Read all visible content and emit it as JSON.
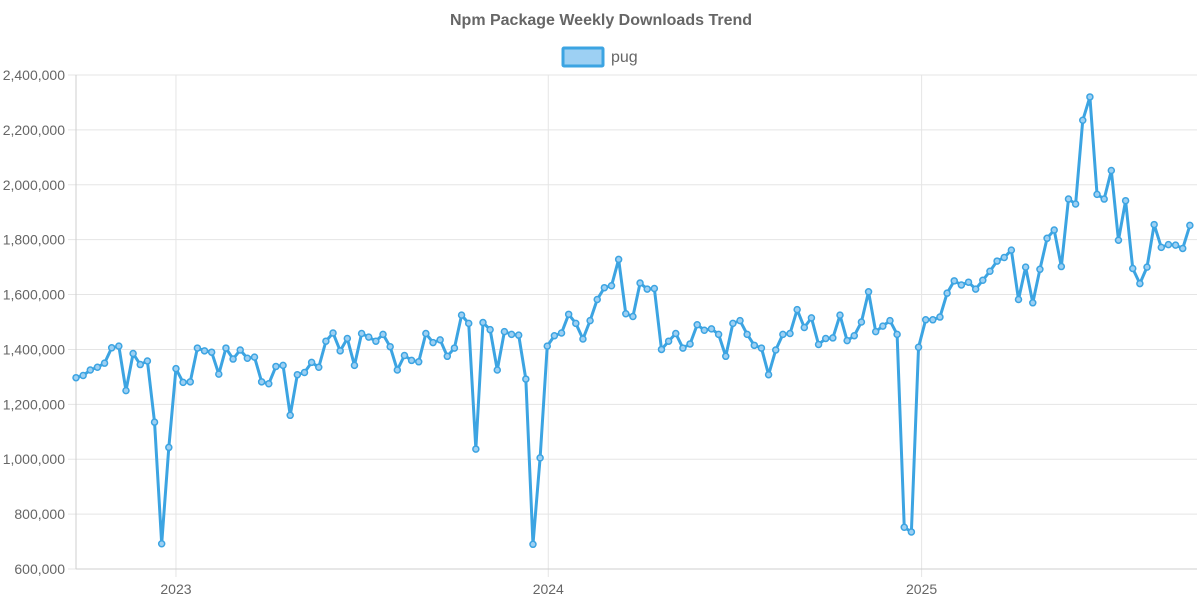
{
  "chart_data": {
    "type": "line",
    "title": "Npm Package Weekly Downloads Trend",
    "xlabel": "",
    "ylabel": "",
    "legend_position": "top",
    "grid": true,
    "colors": {
      "line": "#3ca4e2",
      "fill": "#9dd0f3",
      "text": "#666666",
      "grid": "#e5e5e5"
    },
    "x_range": [
      "2022-09-25",
      "2025-09-28"
    ],
    "ylim": [
      600000,
      2400000
    ],
    "y_ticks": [
      600000,
      800000,
      1000000,
      1200000,
      1400000,
      1600000,
      1800000,
      2000000,
      2200000,
      2400000
    ],
    "y_tick_labels": [
      "600,000",
      "800,000",
      "1,000,000",
      "1,200,000",
      "1,400,000",
      "1,600,000",
      "1,800,000",
      "2,000,000",
      "2,200,000",
      "2,400,000"
    ],
    "x_ticks": [
      {
        "label": "2023",
        "date": "2023-01-01"
      },
      {
        "label": "2024",
        "date": "2024-01-01"
      },
      {
        "label": "2025",
        "date": "2025-01-01"
      }
    ],
    "series": [
      {
        "name": "pug",
        "start_date": "2022-09-25",
        "interval_days": 7,
        "values": [
          1297000,
          1305000,
          1325000,
          1335000,
          1350000,
          1406000,
          1412000,
          1250000,
          1385000,
          1345000,
          1358000,
          1135000,
          692000,
          1043000,
          1330000,
          1280000,
          1282000,
          1405000,
          1395000,
          1390000,
          1310000,
          1405000,
          1365000,
          1398000,
          1368000,
          1372000,
          1282000,
          1275000,
          1338000,
          1342000,
          1160000,
          1308000,
          1316000,
          1353000,
          1335000,
          1430000,
          1460000,
          1395000,
          1440000,
          1342000,
          1458000,
          1445000,
          1430000,
          1455000,
          1410000,
          1325000,
          1378000,
          1360000,
          1355000,
          1458000,
          1425000,
          1435000,
          1375000,
          1405000,
          1525000,
          1495000,
          1037000,
          1498000,
          1472000,
          1325000,
          1465000,
          1455000,
          1452000,
          1292000,
          690000,
          1005000,
          1412000,
          1450000,
          1460000,
          1528000,
          1495000,
          1438000,
          1505000,
          1582000,
          1625000,
          1632000,
          1728000,
          1530000,
          1520000,
          1642000,
          1620000,
          1622000,
          1400000,
          1430000,
          1458000,
          1405000,
          1420000,
          1490000,
          1470000,
          1475000,
          1455000,
          1375000,
          1495000,
          1505000,
          1455000,
          1415000,
          1405000,
          1308000,
          1398000,
          1455000,
          1458000,
          1545000,
          1480000,
          1515000,
          1418000,
          1440000,
          1442000,
          1525000,
          1432000,
          1450000,
          1500000,
          1610000,
          1465000,
          1485000,
          1505000,
          1455000,
          752000,
          735000,
          1408000,
          1508000,
          1508000,
          1518000,
          1605000,
          1650000,
          1635000,
          1645000,
          1620000,
          1652000,
          1685000,
          1722000,
          1735000,
          1762000,
          1582000,
          1700000,
          1570000,
          1692000,
          1805000,
          1835000,
          1702000,
          1948000,
          1930000,
          2235000,
          2320000,
          1965000,
          1948000,
          2052000,
          1798000,
          1942000,
          1695000,
          1640000,
          1700000,
          1855000,
          1772000,
          1782000,
          1780000,
          1768000,
          1852000
        ]
      }
    ]
  }
}
